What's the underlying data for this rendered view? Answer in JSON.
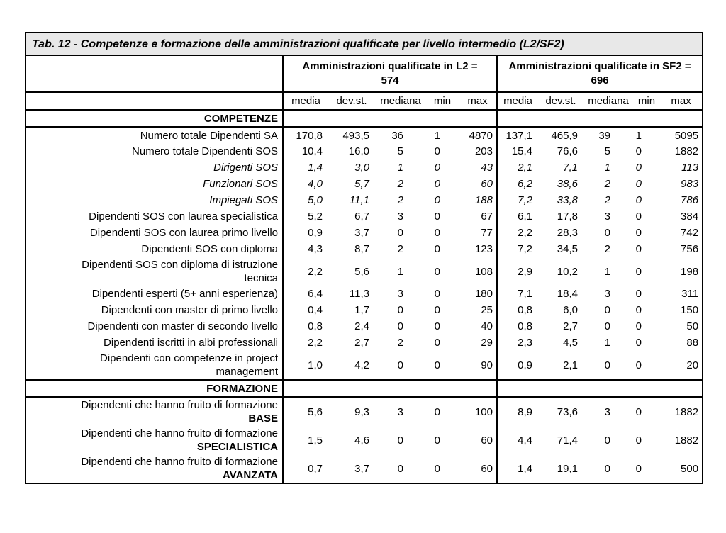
{
  "table": {
    "title": "Tab. 12 - Competenze e formazione delle amministrazioni qualificate per livello intermedio (L2/SF2)",
    "groups": [
      {
        "label": "Amministrazioni qualificate in L2 = 574"
      },
      {
        "label": "Amministrazioni qualificate in SF2 = 696"
      }
    ],
    "stat_columns": [
      "media",
      "dev.st.",
      "mediana",
      "min",
      "max"
    ],
    "sections": [
      {
        "heading": "COMPETENZE",
        "rows": [
          {
            "label": "Numero totale Dipendenti SA",
            "l2": [
              "170,8",
              "493,5",
              "36",
              "1",
              "4870"
            ],
            "sf2": [
              "137,1",
              "465,9",
              "39",
              "1",
              "5095"
            ]
          },
          {
            "label": "Numero totale Dipendenti SOS",
            "l2": [
              "10,4",
              "16,0",
              "5",
              "0",
              "203"
            ],
            "sf2": [
              "15,4",
              "76,6",
              "5",
              "0",
              "1882"
            ]
          },
          {
            "label": "Dirigenti SOS",
            "italic": true,
            "l2": [
              "1,4",
              "3,0",
              "1",
              "0",
              "43"
            ],
            "sf2": [
              "2,1",
              "7,1",
              "1",
              "0",
              "113"
            ]
          },
          {
            "label": "Funzionari SOS",
            "italic": true,
            "l2": [
              "4,0",
              "5,7",
              "2",
              "0",
              "60"
            ],
            "sf2": [
              "6,2",
              "38,6",
              "2",
              "0",
              "983"
            ]
          },
          {
            "label": "Impiegati SOS",
            "italic": true,
            "l2": [
              "5,0",
              "11,1",
              "2",
              "0",
              "188"
            ],
            "sf2": [
              "7,2",
              "33,8",
              "2",
              "0",
              "786"
            ]
          },
          {
            "label": "Dipendenti SOS con laurea specialistica",
            "l2": [
              "5,2",
              "6,7",
              "3",
              "0",
              "67"
            ],
            "sf2": [
              "6,1",
              "17,8",
              "3",
              "0",
              "384"
            ]
          },
          {
            "label": "Dipendenti SOS con laurea primo livello",
            "l2": [
              "0,9",
              "3,7",
              "0",
              "0",
              "77"
            ],
            "sf2": [
              "2,2",
              "28,3",
              "0",
              "0",
              "742"
            ]
          },
          {
            "label": "Dipendenti SOS con diploma",
            "l2": [
              "4,3",
              "8,7",
              "2",
              "0",
              "123"
            ],
            "sf2": [
              "7,2",
              "34,5",
              "2",
              "0",
              "756"
            ]
          },
          {
            "label": "Dipendenti SOS con diploma di istruzione tecnica",
            "l2": [
              "2,2",
              "5,6",
              "1",
              "0",
              "108"
            ],
            "sf2": [
              "2,9",
              "10,2",
              "1",
              "0",
              "198"
            ]
          },
          {
            "label": "Dipendenti esperti (5+ anni esperienza)",
            "l2": [
              "6,4",
              "11,3",
              "3",
              "0",
              "180"
            ],
            "sf2": [
              "7,1",
              "18,4",
              "3",
              "0",
              "311"
            ]
          },
          {
            "label": "Dipendenti con master di primo livello",
            "l2": [
              "0,4",
              "1,7",
              "0",
              "0",
              "25"
            ],
            "sf2": [
              "0,8",
              "6,0",
              "0",
              "0",
              "150"
            ]
          },
          {
            "label": "Dipendenti con master di secondo livello",
            "l2": [
              "0,8",
              "2,4",
              "0",
              "0",
              "40"
            ],
            "sf2": [
              "0,8",
              "2,7",
              "0",
              "0",
              "50"
            ]
          },
          {
            "label": "Dipendenti iscritti in albi professionali",
            "l2": [
              "2,2",
              "2,7",
              "2",
              "0",
              "29"
            ],
            "sf2": [
              "2,3",
              "4,5",
              "1",
              "0",
              "88"
            ]
          },
          {
            "label": "Dipendenti con competenze in project management",
            "l2": [
              "1,0",
              "4,2",
              "0",
              "0",
              "90"
            ],
            "sf2": [
              "0,9",
              "2,1",
              "0",
              "0",
              "20"
            ]
          }
        ]
      },
      {
        "heading": "FORMAZIONE",
        "rows": [
          {
            "label": "Dipendenti che hanno fruito di formazione",
            "bold_suffix": "BASE",
            "l2": [
              "5,6",
              "9,3",
              "3",
              "0",
              "100"
            ],
            "sf2": [
              "8,9",
              "73,6",
              "3",
              "0",
              "1882"
            ]
          },
          {
            "label": "Dipendenti che hanno fruito di formazione",
            "bold_suffix": "SPECIALISTICA",
            "l2": [
              "1,5",
              "4,6",
              "0",
              "0",
              "60"
            ],
            "sf2": [
              "4,4",
              "71,4",
              "0",
              "0",
              "1882"
            ]
          },
          {
            "label": "Dipendenti che hanno fruito di formazione",
            "bold_suffix": "AVANZATA",
            "l2": [
              "0,7",
              "3,7",
              "0",
              "0",
              "60"
            ],
            "sf2": [
              "1,4",
              "19,1",
              "0",
              "0",
              "500"
            ]
          }
        ]
      }
    ]
  }
}
